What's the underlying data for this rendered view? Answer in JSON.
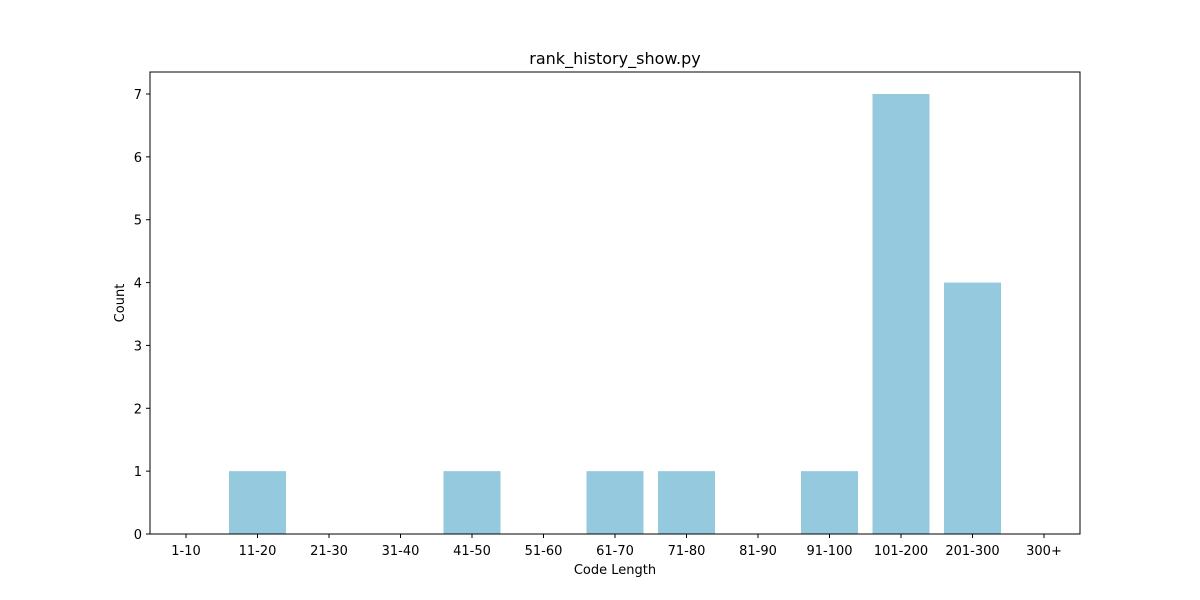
{
  "chart_data": {
    "type": "bar",
    "title": "rank_history_show.py",
    "xlabel": "Code Length",
    "ylabel": "Count",
    "categories": [
      "1-10",
      "11-20",
      "21-30",
      "31-40",
      "41-50",
      "51-60",
      "61-70",
      "71-80",
      "81-90",
      "91-100",
      "101-200",
      "201-300",
      "300+"
    ],
    "values": [
      0,
      1,
      0,
      0,
      1,
      0,
      1,
      1,
      0,
      1,
      7,
      4,
      0
    ],
    "ylim": [
      0,
      7.35
    ],
    "yticks": [
      0,
      1,
      2,
      3,
      4,
      5,
      6,
      7
    ],
    "bar_color": "#95c9dd",
    "grid": false,
    "legend": "none"
  }
}
